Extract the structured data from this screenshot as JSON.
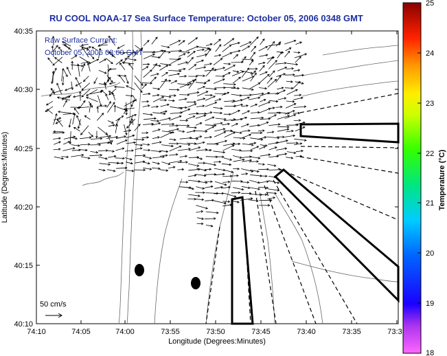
{
  "title": "RU COOL  NOAA-17  Sea Surface Temperature:  October 05, 2006 0348 GMT",
  "annotation": {
    "line1": "Raw Surface Current:",
    "line2": "October 05, 2006 03:00 GMT"
  },
  "scale_label": "50 cm/s",
  "axes": {
    "xlabel": "Longitude (Degrees:Minutes)",
    "ylabel": "Latitude (Degrees:Minutes)",
    "xticks": [
      "74:10",
      "74:05",
      "74:00",
      "73:55",
      "73:50",
      "73:45",
      "73:40",
      "73:35",
      "73:3"
    ],
    "yticks": [
      "40:35",
      "40:30",
      "40:25",
      "40:20",
      "40:15",
      "40:10"
    ]
  },
  "colorbar": {
    "label": "Temperature (°C)",
    "ticks": [
      "25",
      "24",
      "23",
      "22",
      "21",
      "20",
      "19",
      "18"
    ],
    "min": 18,
    "max": 25
  },
  "colors": {
    "title": "#1f2f9f",
    "frame": "#000000"
  }
}
